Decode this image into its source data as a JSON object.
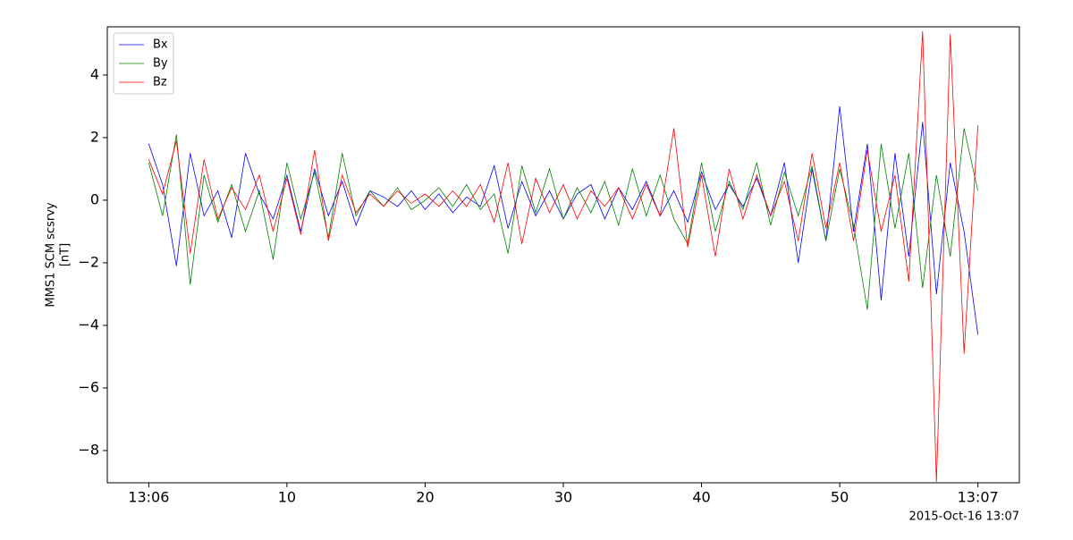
{
  "chart_data": {
    "type": "line",
    "ylabel": [
      "MMS1 SCM scsrvy",
      "[nT]"
    ],
    "corner_label": "2015-Oct-16 13:07",
    "x": [
      0,
      1,
      2,
      3,
      4,
      5,
      6,
      7,
      8,
      9,
      10,
      11,
      12,
      13,
      14,
      15,
      16,
      17,
      18,
      19,
      20,
      21,
      22,
      23,
      24,
      25,
      26,
      27,
      28,
      29,
      30,
      31,
      32,
      33,
      34,
      35,
      36,
      37,
      38,
      39,
      40,
      41,
      42,
      43,
      44,
      45,
      46,
      47,
      48,
      49,
      50,
      51,
      52,
      53,
      54,
      55,
      56,
      57,
      58,
      59,
      60
    ],
    "series": [
      {
        "name": "Bx",
        "color": "#0000ff",
        "values": [
          1.8,
          0.5,
          -2.1,
          1.5,
          -0.5,
          0.3,
          -1.2,
          1.5,
          0.2,
          -0.6,
          0.8,
          -1.0,
          1.0,
          -0.5,
          0.6,
          -0.8,
          0.3,
          0.1,
          -0.2,
          0.3,
          -0.3,
          0.2,
          -0.4,
          0.1,
          -0.2,
          1.1,
          -0.9,
          0.6,
          -0.5,
          0.3,
          -0.6,
          0.2,
          0.5,
          -0.6,
          0.4,
          -0.3,
          0.6,
          -0.5,
          0.3,
          -0.7,
          0.9,
          -0.3,
          0.5,
          -0.2,
          0.7,
          -0.5,
          1.2,
          -2.0,
          1.0,
          -1.3,
          3.0,
          -1.0,
          1.8,
          -3.2,
          1.5,
          -1.8,
          2.5,
          -3.0,
          1.2,
          -1.0,
          -4.3
        ]
      },
      {
        "name": "By",
        "color": "#008000",
        "values": [
          1.2,
          -0.5,
          2.1,
          -2.7,
          0.8,
          -0.7,
          0.5,
          -1.0,
          0.3,
          -1.9,
          1.2,
          -0.6,
          0.9,
          -1.2,
          1.5,
          -0.5,
          0.3,
          -0.2,
          0.4,
          -0.3,
          0.0,
          0.4,
          -0.2,
          0.5,
          -0.3,
          0.2,
          -1.7,
          1.1,
          -0.4,
          1.0,
          -0.6,
          0.4,
          -0.4,
          0.6,
          -0.8,
          1.0,
          -0.5,
          0.8,
          -0.6,
          -1.4,
          1.2,
          -1.0,
          0.6,
          -0.3,
          1.2,
          -0.8,
          0.9,
          -0.5,
          1.1,
          -1.3,
          1.0,
          -0.8,
          -3.5,
          1.8,
          -0.9,
          1.5,
          -2.8,
          0.8,
          -1.8,
          2.3,
          0.3
        ]
      },
      {
        "name": "Bz",
        "color": "#ff0000",
        "values": [
          1.3,
          0.2,
          1.9,
          -1.7,
          1.3,
          -0.6,
          0.4,
          -0.3,
          0.8,
          -1.0,
          0.7,
          -1.1,
          1.6,
          -1.3,
          0.8,
          -0.4,
          0.2,
          -0.2,
          0.3,
          -0.1,
          0.2,
          -0.2,
          0.3,
          -0.2,
          0.5,
          -0.7,
          1.2,
          -1.4,
          0.7,
          -0.4,
          0.5,
          -0.6,
          0.3,
          -0.2,
          0.4,
          -0.6,
          0.5,
          -0.5,
          2.3,
          -1.5,
          0.8,
          -1.8,
          1.0,
          -0.6,
          0.8,
          -0.5,
          0.6,
          -1.3,
          1.5,
          -0.9,
          1.2,
          -1.3,
          1.6,
          -1.0,
          0.8,
          -2.6,
          5.4,
          -9.0,
          5.3,
          -4.9,
          2.4
        ]
      }
    ],
    "xlim": [
      -3,
      63
    ],
    "xticks": [
      {
        "value": 0,
        "label": "13:06"
      },
      10,
      20,
      30,
      40,
      50,
      {
        "value": 60,
        "label": "13:07"
      }
    ],
    "ylim": [
      -9.03,
      5.54
    ],
    "yticks": [
      {
        "value": -8,
        "label": "−8"
      },
      {
        "value": -6,
        "label": "−6"
      },
      {
        "value": -4,
        "label": "−4"
      },
      {
        "value": -2,
        "label": "−2"
      },
      0,
      2,
      4
    ],
    "legend": "upper left"
  }
}
